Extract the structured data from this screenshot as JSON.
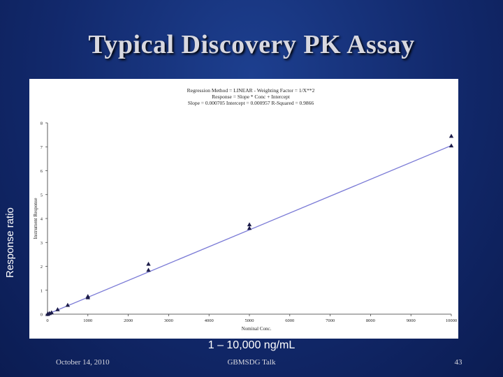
{
  "slide": {
    "title": "Typical Discovery PK Assay",
    "y_axis_label": "Response ratio",
    "range_label": "1 – 10,000 ng/mL",
    "footer_date": "October 14, 2010",
    "footer_center": "GBMSDG Talk",
    "page_number": "43"
  },
  "colors": {
    "background": "#12296c",
    "title": "#d8d8e0",
    "fit_line": "#7a7ad6",
    "points": "#1c1c4a"
  },
  "chart_data": {
    "type": "scatter",
    "regression_text": [
      "Regression Method = LINEAR - Weighting Factor = 1/X**2",
      "Response = Slope * Conc + Intercept",
      "Slope = 0.000705 Intercept = 0.000957 R-Squared = 0.9866"
    ],
    "xlabel": "Nominal Conc.",
    "ylabel": "Instrument Response",
    "xlim": [
      0,
      10000
    ],
    "ylim": [
      0,
      8
    ],
    "x_ticks": [
      0,
      1000,
      2000,
      3000,
      4000,
      5000,
      6000,
      7000,
      8000,
      9000,
      10000
    ],
    "y_ticks": [
      0,
      1,
      2,
      3,
      4,
      5,
      6,
      7,
      8
    ],
    "grid": false,
    "fit": {
      "slope": 0.000705,
      "intercept": 0.000957
    },
    "points": [
      {
        "x": 1,
        "y": 0.0
      },
      {
        "x": 5,
        "y": 0.01
      },
      {
        "x": 10,
        "y": 0.02
      },
      {
        "x": 50,
        "y": 0.04
      },
      {
        "x": 100,
        "y": 0.07
      },
      {
        "x": 250,
        "y": 0.2
      },
      {
        "x": 500,
        "y": 0.38
      },
      {
        "x": 1000,
        "y": 0.7
      },
      {
        "x": 1000,
        "y": 0.75
      },
      {
        "x": 2500,
        "y": 1.85
      },
      {
        "x": 2500,
        "y": 2.1
      },
      {
        "x": 5000,
        "y": 3.6
      },
      {
        "x": 5000,
        "y": 3.75
      },
      {
        "x": 10000,
        "y": 7.05
      },
      {
        "x": 10000,
        "y": 7.45
      }
    ]
  }
}
